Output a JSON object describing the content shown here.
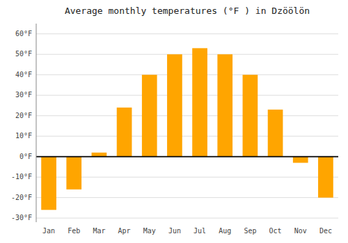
{
  "chart_data": {
    "type": "bar",
    "title": "Average monthly temperatures (°F ) in Dzöölön",
    "categories": [
      "Jan",
      "Feb",
      "Mar",
      "Apr",
      "May",
      "Jun",
      "Jul",
      "Aug",
      "Sep",
      "Oct",
      "Nov",
      "Dec"
    ],
    "values": [
      -26,
      -16,
      2,
      24,
      40,
      50,
      53,
      50,
      40,
      23,
      -3,
      -20
    ],
    "color": "#FFA500",
    "ylim": [
      -32,
      65
    ],
    "yticks": [
      {
        "value": -30,
        "label": "-30°F"
      },
      {
        "value": -20,
        "label": "-20°F"
      },
      {
        "value": -10,
        "label": "-10°F"
      },
      {
        "value": 0,
        "label": "0°F"
      },
      {
        "value": 10,
        "label": "10°F"
      },
      {
        "value": 20,
        "label": "20°F"
      },
      {
        "value": 30,
        "label": "30°F"
      },
      {
        "value": 40,
        "label": "40°F"
      },
      {
        "value": 50,
        "label": "50°F"
      },
      {
        "value": 60,
        "label": "60°F"
      }
    ],
    "grid": true
  }
}
